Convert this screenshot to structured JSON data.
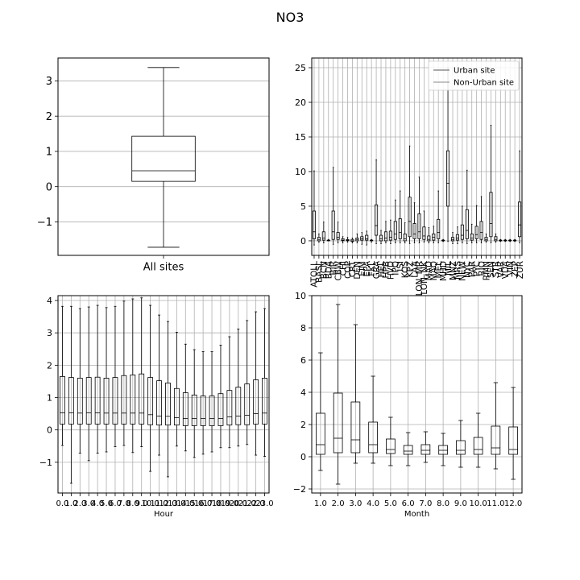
{
  "figure": {
    "title": "NO3"
  },
  "chart_data": [
    {
      "id": "all-sites",
      "type": "box",
      "title": "",
      "xlabel": "",
      "ylabel": "",
      "ylim": [
        -1.95,
        3.65
      ],
      "yticks": [
        -1,
        0,
        1,
        2,
        3
      ],
      "yticklabels": [
        "−1",
        "0",
        "1",
        "2",
        "3"
      ],
      "grid": "y",
      "categories": [
        "All sites"
      ],
      "boxes": [
        {
          "whislo": -1.72,
          "q1": 0.15,
          "med": 0.45,
          "q3": 1.43,
          "whishi": 3.38
        }
      ]
    },
    {
      "id": "by-site",
      "type": "box",
      "title": "",
      "xlabel": "",
      "ylabel": "",
      "ylim": [
        -2.1,
        26.4
      ],
      "yticks": [
        0,
        5,
        10,
        15,
        20,
        25
      ],
      "yticklabels": [
        "0",
        "5",
        "10",
        "15",
        "20",
        "25"
      ],
      "grid": "both",
      "legend": {
        "placement": "top-right",
        "entries": [
          {
            "label": "Urban site",
            "color": "#555555"
          },
          {
            "label": "Non-Urban site",
            "color": "#888888"
          }
        ]
      },
      "categories": [
        "ATOLL",
        "BASL",
        "BCN",
        "BDA",
        "BIR",
        "CBW",
        "CHI",
        "COP",
        "CRT",
        "DEN",
        "EIM",
        "EPA",
        "FKL",
        "GRA",
        "HEL",
        "HPB",
        "HVD",
        "IPQ",
        "ISI",
        "KOS",
        "KPZ",
        "LAA",
        "LON_MR",
        "LON_NK",
        "MAD",
        "MAQ",
        "MEL",
        "MHD",
        "MIL",
        "MNZ",
        "MRS",
        "NEW",
        "NYC",
        "PAR",
        "PYC",
        "RIO",
        "RMN",
        "SEN",
        "STR",
        "VAR",
        "VDA",
        "VIN",
        "ZEP",
        "ZUR"
      ],
      "boxes": [
        {
          "whislo": -0.6,
          "q1": 0.3,
          "med": 1.3,
          "q3": 4.3,
          "whishi": 10.1
        },
        {
          "whislo": -0.2,
          "q1": 0.0,
          "med": 0.2,
          "q3": 0.5,
          "whishi": 1.0
        },
        {
          "whislo": -0.3,
          "q1": 0.1,
          "med": 0.4,
          "q3": 1.3,
          "whishi": 2.7
        },
        {
          "whislo": 0.0,
          "q1": 0.0,
          "med": 0.05,
          "q3": 0.1,
          "whishi": 0.2
        },
        {
          "whislo": -0.5,
          "q1": 0.2,
          "med": 1.3,
          "q3": 4.3,
          "whishi": 10.6
        },
        {
          "whislo": -0.3,
          "q1": 0.2,
          "med": 0.5,
          "q3": 1.2,
          "whishi": 2.7
        },
        {
          "whislo": -0.3,
          "q1": 0.0,
          "med": 0.1,
          "q3": 0.3,
          "whishi": 0.6
        },
        {
          "whislo": -0.2,
          "q1": 0.0,
          "med": 0.1,
          "q3": 0.2,
          "whishi": 0.5
        },
        {
          "whislo": -0.3,
          "q1": -0.1,
          "med": 0.0,
          "q3": 0.2,
          "whishi": 0.4
        },
        {
          "whislo": -0.3,
          "q1": 0.0,
          "med": 0.2,
          "q3": 0.4,
          "whishi": 1.0
        },
        {
          "whislo": -0.5,
          "q1": 0.1,
          "med": 0.3,
          "q3": 0.6,
          "whishi": 1.2
        },
        {
          "whislo": -0.6,
          "q1": 0.1,
          "med": 0.3,
          "q3": 0.8,
          "whishi": 1.4
        },
        {
          "whislo": -0.2,
          "q1": 0.0,
          "med": 0.05,
          "q3": 0.1,
          "whishi": 0.2
        },
        {
          "whislo": -0.4,
          "q1": 0.8,
          "med": 2.2,
          "q3": 5.2,
          "whishi": 11.7
        },
        {
          "whislo": -0.4,
          "q1": 0.0,
          "med": 0.3,
          "q3": 0.8,
          "whishi": 1.5
        },
        {
          "whislo": -0.3,
          "q1": 0.0,
          "med": 0.4,
          "q3": 1.3,
          "whishi": 2.8
        },
        {
          "whislo": -0.4,
          "q1": 0.1,
          "med": 0.5,
          "q3": 1.4,
          "whishi": 3.0
        },
        {
          "whislo": -0.3,
          "q1": 0.2,
          "med": 1.0,
          "q3": 2.8,
          "whishi": 5.9
        },
        {
          "whislo": -0.3,
          "q1": 0.3,
          "med": 1.2,
          "q3": 3.2,
          "whishi": 7.2
        },
        {
          "whislo": -0.3,
          "q1": 0.0,
          "med": 0.3,
          "q3": 1.0,
          "whishi": 2.6
        },
        {
          "whislo": -0.4,
          "q1": 0.6,
          "med": 2.8,
          "q3": 6.3,
          "whishi": 13.7
        },
        {
          "whislo": -0.3,
          "q1": 0.3,
          "med": 1.0,
          "q3": 2.5,
          "whishi": 5.5
        },
        {
          "whislo": -0.3,
          "q1": 0.3,
          "med": 1.3,
          "q3": 3.9,
          "whishi": 9.2
        },
        {
          "whislo": -0.2,
          "q1": 0.2,
          "med": 0.7,
          "q3": 2.0,
          "whishi": 4.3
        },
        {
          "whislo": -0.3,
          "q1": 0.0,
          "med": 0.2,
          "q3": 0.7,
          "whishi": 1.9
        },
        {
          "whislo": -0.3,
          "q1": 0.1,
          "med": 0.5,
          "q3": 1.0,
          "whishi": 2.1
        },
        {
          "whislo": -0.3,
          "q1": 0.3,
          "med": 1.2,
          "q3": 3.1,
          "whishi": 7.2
        },
        {
          "whislo": -0.1,
          "q1": 0.0,
          "med": 0.05,
          "q3": 0.1,
          "whishi": 0.2
        },
        {
          "whislo": -0.1,
          "q1": 5.0,
          "med": 8.3,
          "q3": 13.0,
          "whishi": 25.0
        },
        {
          "whislo": -0.4,
          "q1": 0.0,
          "med": 0.2,
          "q3": 0.5,
          "whishi": 1.2
        },
        {
          "whislo": -0.4,
          "q1": 0.1,
          "med": 0.4,
          "q3": 0.9,
          "whishi": 2.0
        },
        {
          "whislo": -0.3,
          "q1": 0.2,
          "med": 0.8,
          "q3": 2.3,
          "whishi": 5.0
        },
        {
          "whislo": -0.4,
          "q1": 0.3,
          "med": 1.5,
          "q3": 4.5,
          "whishi": 10.2
        },
        {
          "whislo": -0.3,
          "q1": 0.1,
          "med": 0.4,
          "q3": 1.0,
          "whishi": 2.4
        },
        {
          "whislo": -0.3,
          "q1": 0.3,
          "med": 0.9,
          "q3": 2.1,
          "whishi": 5.1
        },
        {
          "whislo": -0.3,
          "q1": 0.2,
          "med": 1.2,
          "q3": 2.8,
          "whishi": 6.4
        },
        {
          "whislo": -0.2,
          "q1": 0.0,
          "med": 0.2,
          "q3": 0.5,
          "whishi": 1.0
        },
        {
          "whislo": -0.3,
          "q1": 0.6,
          "med": 2.5,
          "q3": 7.0,
          "whishi": 16.7
        },
        {
          "whislo": -0.2,
          "q1": 0.0,
          "med": 0.2,
          "q3": 0.6,
          "whishi": 1.0
        },
        {
          "whislo": -0.1,
          "q1": 0.0,
          "med": 0.05,
          "q3": 0.1,
          "whishi": 0.2
        },
        {
          "whislo": -0.1,
          "q1": 0.0,
          "med": 0.05,
          "q3": 0.1,
          "whishi": 0.2
        },
        {
          "whislo": -0.1,
          "q1": 0.0,
          "med": 0.05,
          "q3": 0.1,
          "whishi": 0.2
        },
        {
          "whislo": -0.1,
          "q1": 0.0,
          "med": 0.05,
          "q3": 0.1,
          "whishi": 0.2
        },
        {
          "whislo": -0.3,
          "q1": 0.6,
          "med": 2.3,
          "q3": 5.6,
          "whishi": 13.0
        }
      ]
    },
    {
      "id": "by-hour",
      "type": "box",
      "title": "",
      "xlabel": "Hour",
      "ylabel": "",
      "ylim": [
        -1.95,
        4.15
      ],
      "yticks": [
        -1,
        0,
        1,
        2,
        3,
        4
      ],
      "yticklabels": [
        "−1",
        "0",
        "1",
        "2",
        "3",
        "4"
      ],
      "grid": "both",
      "categories": [
        "0.0",
        "1.0",
        "2.0",
        "3.0",
        "4.0",
        "5.0",
        "6.0",
        "7.0",
        "8.0",
        "9.0",
        "10.0",
        "11.0",
        "12.0",
        "13.0",
        "14.0",
        "15.0",
        "16.0",
        "17.0",
        "18.0",
        "19.0",
        "20.0",
        "21.0",
        "22.0",
        "23.0"
      ],
      "boxes": [
        {
          "whislo": -0.48,
          "q1": 0.18,
          "med": 0.53,
          "q3": 1.65,
          "whishi": 3.82
        },
        {
          "whislo": -1.65,
          "q1": 0.18,
          "med": 0.53,
          "q3": 1.62,
          "whishi": 3.82
        },
        {
          "whislo": -0.72,
          "q1": 0.18,
          "med": 0.52,
          "q3": 1.6,
          "whishi": 3.75
        },
        {
          "whislo": -0.95,
          "q1": 0.18,
          "med": 0.53,
          "q3": 1.62,
          "whishi": 3.8
        },
        {
          "whislo": -0.72,
          "q1": 0.18,
          "med": 0.53,
          "q3": 1.63,
          "whishi": 3.85
        },
        {
          "whislo": -0.68,
          "q1": 0.18,
          "med": 0.52,
          "q3": 1.6,
          "whishi": 3.78
        },
        {
          "whislo": -0.52,
          "q1": 0.18,
          "med": 0.52,
          "q3": 1.62,
          "whishi": 3.82
        },
        {
          "whislo": -0.48,
          "q1": 0.18,
          "med": 0.52,
          "q3": 1.68,
          "whishi": 3.98
        },
        {
          "whislo": -0.7,
          "q1": 0.18,
          "med": 0.52,
          "q3": 1.7,
          "whishi": 4.05
        },
        {
          "whislo": -0.52,
          "q1": 0.18,
          "med": 0.52,
          "q3": 1.73,
          "whishi": 4.08
        },
        {
          "whislo": -1.28,
          "q1": 0.16,
          "med": 0.47,
          "q3": 1.62,
          "whishi": 3.85
        },
        {
          "whislo": -0.78,
          "q1": 0.15,
          "med": 0.43,
          "q3": 1.52,
          "whishi": 3.55
        },
        {
          "whislo": -1.45,
          "q1": 0.15,
          "med": 0.42,
          "q3": 1.45,
          "whishi": 3.35
        },
        {
          "whislo": -0.5,
          "q1": 0.15,
          "med": 0.38,
          "q3": 1.28,
          "whishi": 3.02
        },
        {
          "whislo": -0.65,
          "q1": 0.13,
          "med": 0.35,
          "q3": 1.15,
          "whishi": 2.65
        },
        {
          "whislo": -0.85,
          "q1": 0.13,
          "med": 0.35,
          "q3": 1.08,
          "whishi": 2.48
        },
        {
          "whislo": -0.75,
          "q1": 0.13,
          "med": 0.35,
          "q3": 1.05,
          "whishi": 2.42
        },
        {
          "whislo": -0.68,
          "q1": 0.13,
          "med": 0.35,
          "q3": 1.05,
          "whishi": 2.42
        },
        {
          "whislo": -0.55,
          "q1": 0.13,
          "med": 0.35,
          "q3": 1.12,
          "whishi": 2.62
        },
        {
          "whislo": -0.55,
          "q1": 0.15,
          "med": 0.4,
          "q3": 1.22,
          "whishi": 2.88
        },
        {
          "whislo": -0.5,
          "q1": 0.16,
          "med": 0.43,
          "q3": 1.32,
          "whishi": 3.12
        },
        {
          "whislo": -0.45,
          "q1": 0.16,
          "med": 0.45,
          "q3": 1.42,
          "whishi": 3.38
        },
        {
          "whislo": -0.78,
          "q1": 0.18,
          "med": 0.5,
          "q3": 1.55,
          "whishi": 3.65
        },
        {
          "whislo": -0.82,
          "q1": 0.18,
          "med": 0.52,
          "q3": 1.6,
          "whishi": 3.75
        }
      ]
    },
    {
      "id": "by-month",
      "type": "box",
      "title": "",
      "xlabel": "Month",
      "ylabel": "",
      "ylim": [
        -2.25,
        10.0
      ],
      "yticks": [
        -2,
        0,
        2,
        4,
        6,
        8,
        10
      ],
      "yticklabels": [
        "−2",
        "0",
        "2",
        "4",
        "6",
        "8",
        "10"
      ],
      "grid": "both",
      "categories": [
        "1.0",
        "2.0",
        "3.0",
        "4.0",
        "5.0",
        "6.0",
        "7.0",
        "8.0",
        "9.0",
        "10.0",
        "11.0",
        "12.0"
      ],
      "boxes": [
        {
          "whislo": -0.85,
          "q1": 0.15,
          "med": 0.75,
          "q3": 2.7,
          "whishi": 6.45
        },
        {
          "whislo": -1.7,
          "q1": 0.25,
          "med": 1.15,
          "q3": 3.95,
          "whishi": 9.45
        },
        {
          "whislo": -0.4,
          "q1": 0.25,
          "med": 1.05,
          "q3": 3.4,
          "whishi": 8.2
        },
        {
          "whislo": -0.4,
          "q1": 0.25,
          "med": 0.75,
          "q3": 2.15,
          "whishi": 5.0
        },
        {
          "whislo": -0.55,
          "q1": 0.2,
          "med": 0.45,
          "q3": 1.1,
          "whishi": 2.45
        },
        {
          "whislo": -0.55,
          "q1": 0.15,
          "med": 0.35,
          "q3": 0.7,
          "whishi": 1.5
        },
        {
          "whislo": -0.35,
          "q1": 0.15,
          "med": 0.4,
          "q3": 0.75,
          "whishi": 1.55
        },
        {
          "whislo": -0.55,
          "q1": 0.15,
          "med": 0.4,
          "q3": 0.7,
          "whishi": 1.45
        },
        {
          "whislo": -0.65,
          "q1": 0.15,
          "med": 0.4,
          "q3": 1.0,
          "whishi": 2.25
        },
        {
          "whislo": -0.65,
          "q1": 0.15,
          "med": 0.45,
          "q3": 1.2,
          "whishi": 2.7
        },
        {
          "whislo": -0.75,
          "q1": 0.15,
          "med": 0.55,
          "q3": 1.9,
          "whishi": 4.6
        },
        {
          "whislo": -1.4,
          "q1": 0.15,
          "med": 0.45,
          "q3": 1.85,
          "whishi": 4.3
        }
      ]
    }
  ]
}
